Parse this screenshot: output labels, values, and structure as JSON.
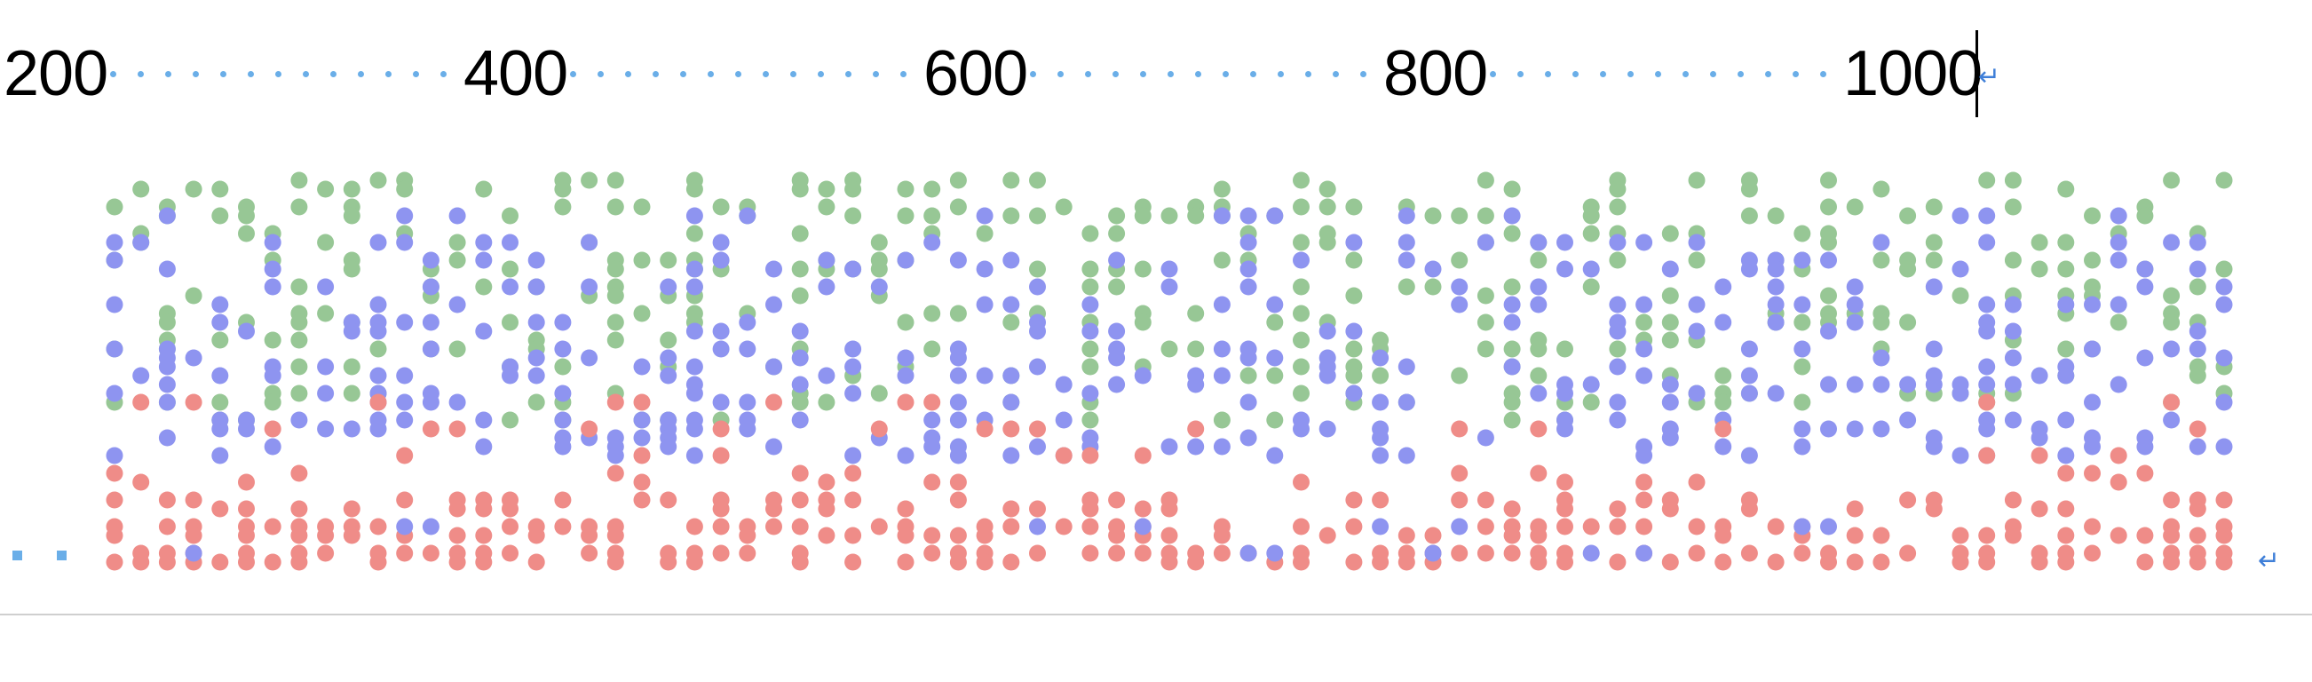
{
  "ruler": {
    "labels": [
      "200",
      "400",
      "600",
      "800",
      "1000"
    ]
  },
  "marks": {
    "end_of_line_paragraph": "↵",
    "end_of_dots_paragraph": "↵"
  },
  "colors": {
    "page_background": "#ffffff",
    "ruler_text": "#000000",
    "leader_dots": "#6aaee8",
    "paragraph_mark": "#3f7fd8",
    "dot_blue": "#8e94f0",
    "dot_green": "#97c795",
    "dot_red": "#ef8c88",
    "rule_line": "#cfcfcf"
  },
  "icons": {
    "paragraph_mark": "return-arrow-icon",
    "tab_marker": "square-tab-marker-icon"
  }
}
